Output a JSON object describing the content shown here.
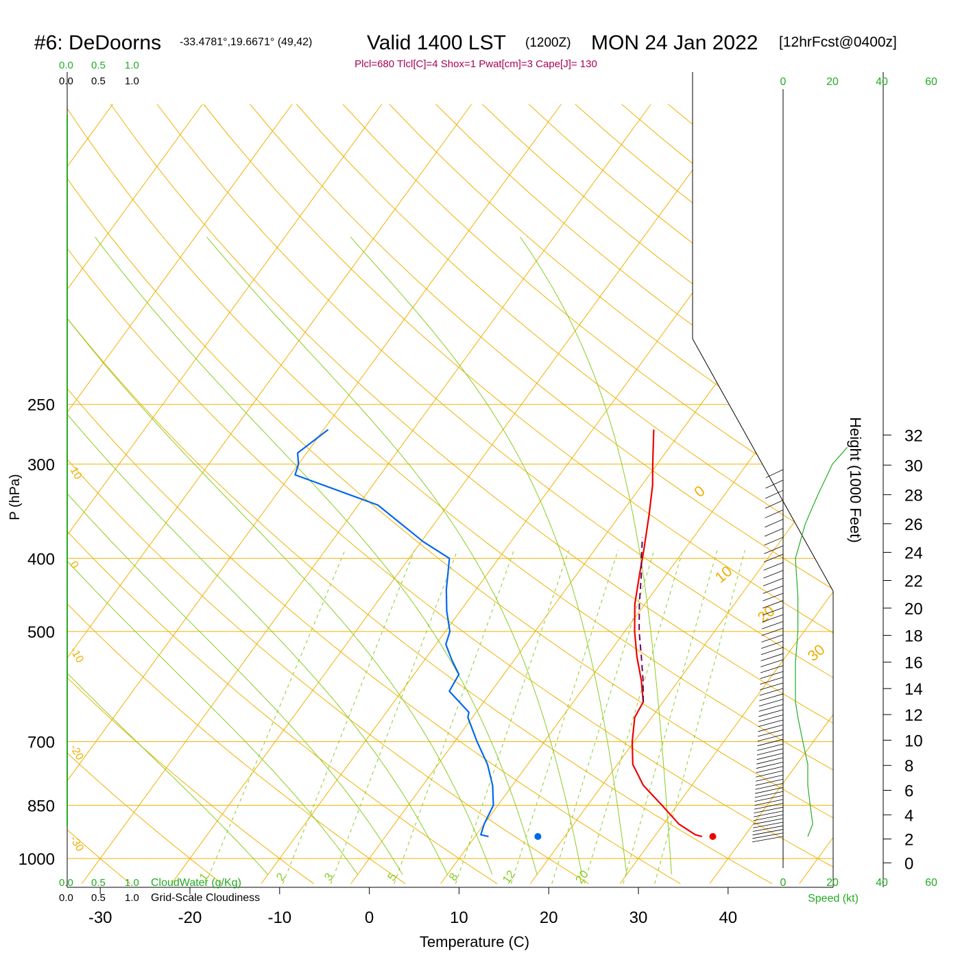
{
  "header": {
    "station": "#6: DeDoorns",
    "coords": "-33.4781°,19.6671° (49,42)",
    "valid": "Valid 1400 LST",
    "zulu": "(1200Z)",
    "date": "MON 24 Jan 2022",
    "forecast": "[12hrFcst@0400z]",
    "indices": "Plcl=680 Tlcl[C]=4 Shox=1 Pwat[cm]=3 Cape[J]= 130"
  },
  "labels": {
    "ylabel": "P (hPa)",
    "xlabel": "Temperature (C)",
    "height_label": "Height (1000 Feet)",
    "speed_label": "Speed (kt)",
    "cloudwater_label": "CloudWater (g/Kg)",
    "cloudiness_label": "Grid-Scale Cloudiness",
    "cloud_scale": [
      "0.0",
      "0.5",
      "1.0"
    ]
  },
  "colors": {
    "temperature": "#ee0000",
    "dewpoint": "#0066ee",
    "parcel": "#66005a",
    "isotherm": "#f0b000",
    "mixing_ratio": "#88cc22",
    "wind_speed": "#22aa22",
    "indices": "#aa0055"
  },
  "chart_data": {
    "type": "line",
    "title": "#6: DeDoorns Valid 1400 LST (1200Z) MON 24 Jan 2022 [12hrFcst@0400z]",
    "y_scale": "log-pressure",
    "ylim": [
      1000,
      250
    ],
    "xlim": [
      -35,
      45
    ],
    "pressure_ticks": [
      250,
      300,
      400,
      500,
      700,
      850,
      1000
    ],
    "temperature_ticks": [
      -30,
      -20,
      -10,
      0,
      10,
      20,
      30,
      40
    ],
    "height_ticks": [
      0,
      2,
      4,
      6,
      8,
      10,
      12,
      14,
      16,
      18,
      20,
      22,
      24,
      26,
      28,
      30,
      32
    ],
    "speed_ticks": [
      0,
      20,
      40,
      60
    ],
    "isotherm_labels": [
      -30,
      -20,
      -10,
      0,
      10,
      20,
      30
    ],
    "mixing_ratio_labels": [
      1,
      2,
      3,
      5,
      8,
      12,
      20
    ],
    "series": [
      {
        "name": "Temperature",
        "points": [
          [
            935,
            35.3
          ],
          [
            930,
            34.4
          ],
          [
            900,
            31.7
          ],
          [
            850,
            28.3
          ],
          [
            800,
            24.6
          ],
          [
            750,
            21.7
          ],
          [
            700,
            19.8
          ],
          [
            650,
            18.1
          ],
          [
            620,
            17.8
          ],
          [
            580,
            15.8
          ],
          [
            540,
            13.4
          ],
          [
            500,
            11.1
          ],
          [
            460,
            8.9
          ],
          [
            420,
            7.0
          ],
          [
            390,
            5.5
          ],
          [
            350,
            3.2
          ],
          [
            320,
            1.2
          ],
          [
            300,
            -0.5
          ],
          [
            270,
            -3.2
          ]
        ]
      },
      {
        "name": "Dewpoint",
        "points": [
          [
            935,
            11.5
          ],
          [
            930,
            10.5
          ],
          [
            900,
            10.0
          ],
          [
            850,
            9.5
          ],
          [
            800,
            7.8
          ],
          [
            750,
            5.5
          ],
          [
            700,
            2.5
          ],
          [
            650,
            -0.5
          ],
          [
            640,
            -0.8
          ],
          [
            600,
            -4.7
          ],
          [
            570,
            -5.0
          ],
          [
            545,
            -7.0
          ],
          [
            520,
            -8.9
          ],
          [
            500,
            -9.5
          ],
          [
            470,
            -11.5
          ],
          [
            440,
            -13.3
          ],
          [
            400,
            -15.5
          ],
          [
            380,
            -19.8
          ],
          [
            340,
            -27.8
          ],
          [
            310,
            -39.5
          ],
          [
            300,
            -40.0
          ],
          [
            290,
            -41.0
          ],
          [
            270,
            -39.5
          ]
        ]
      },
      {
        "name": "Parcel",
        "points": [
          [
            620,
            17.8
          ],
          [
            580,
            16.0
          ],
          [
            540,
            13.9
          ],
          [
            500,
            11.6
          ],
          [
            460,
            9.4
          ],
          [
            420,
            7.2
          ],
          [
            400,
            5.9
          ],
          [
            375,
            4.3
          ]
        ]
      }
    ],
    "surface_temperature": 36.5,
    "surface_dewpoint": 17.0,
    "surface_pressure": 935,
    "wind_speed_profile": [
      [
        935,
        10
      ],
      [
        900,
        12
      ],
      [
        850,
        11
      ],
      [
        800,
        10
      ],
      [
        750,
        10
      ],
      [
        700,
        8
      ],
      [
        650,
        6
      ],
      [
        620,
        5
      ],
      [
        600,
        5
      ],
      [
        550,
        5
      ],
      [
        500,
        6
      ],
      [
        450,
        6
      ],
      [
        400,
        5
      ],
      [
        360,
        9
      ],
      [
        330,
        14
      ],
      [
        300,
        20
      ],
      [
        285,
        26
      ]
    ]
  }
}
